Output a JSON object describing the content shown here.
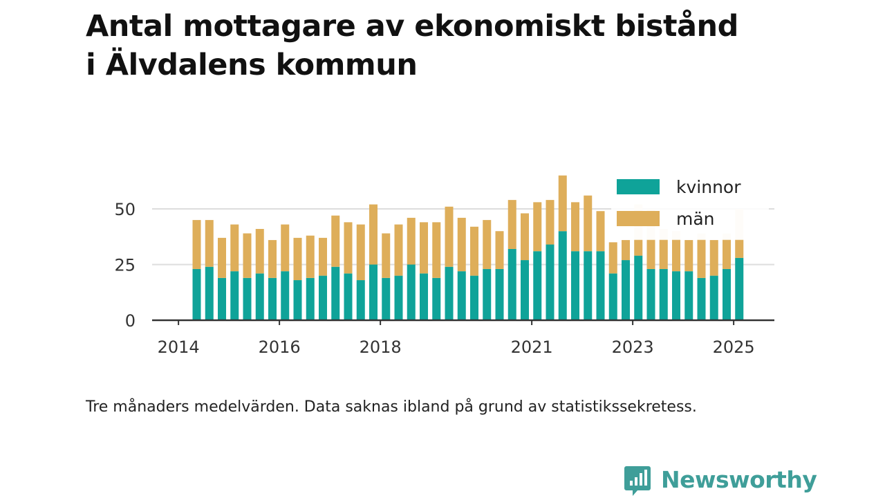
{
  "title_line1": "Antal mottagare av ekonomiskt bistånd",
  "title_line2": "i Älvdalens kommun",
  "note": "Tre månaders medelvärden. Data saknas ibland på grund av statistikssekretess.",
  "brand": {
    "name": "Newsworthy",
    "icon": "newsworthy-logo-icon",
    "color": "#3f9e99"
  },
  "chart_data": {
    "type": "bar",
    "stacked": true,
    "x_unit": "quarter",
    "categories": [
      "2014-Q2",
      "2014-Q3",
      "2014-Q4",
      "2015-Q1",
      "2015-Q2",
      "2015-Q3",
      "2015-Q4",
      "2016-Q1",
      "2016-Q2",
      "2016-Q3",
      "2016-Q4",
      "2017-Q1",
      "2017-Q2",
      "2017-Q3",
      "2017-Q4",
      "2018-Q1",
      "2018-Q2",
      "2018-Q3",
      "2018-Q4",
      "2019-Q1",
      "2019-Q2",
      "2019-Q3",
      "2019-Q4",
      "2020-Q1",
      "2020-Q2",
      "2020-Q3",
      "2020-Q4",
      "2021-Q1",
      "2021-Q2",
      "2021-Q3",
      "2021-Q4",
      "2022-Q1",
      "2022-Q2",
      "2022-Q3",
      "2022-Q4",
      "2023-Q1",
      "2023-Q2",
      "2023-Q3",
      "2023-Q4",
      "2024-Q1",
      "2024-Q2",
      "2024-Q3",
      "2024-Q4",
      "2025-Q1"
    ],
    "series": [
      {
        "name": "kvinnor",
        "color": "#0fa399",
        "values": [
          23,
          24,
          19,
          22,
          19,
          21,
          19,
          22,
          18,
          19,
          20,
          24,
          21,
          18,
          25,
          19,
          20,
          25,
          21,
          19,
          24,
          22,
          20,
          23,
          23,
          32,
          27,
          31,
          34,
          40,
          31,
          31,
          31,
          21,
          27,
          29,
          23,
          23,
          22,
          22,
          19,
          20,
          23,
          28
        ]
      },
      {
        "name": "män",
        "color": "#deae5a",
        "values": [
          22,
          21,
          18,
          21,
          20,
          20,
          17,
          21,
          19,
          19,
          17,
          23,
          23,
          25,
          27,
          20,
          23,
          21,
          23,
          25,
          27,
          24,
          22,
          22,
          17,
          22,
          21,
          22,
          20,
          25,
          22,
          25,
          18,
          14,
          9,
          7,
          13,
          13,
          14,
          14,
          17,
          16,
          13,
          8
        ]
      }
    ],
    "faded_tops": [
      null,
      null,
      null,
      null,
      null,
      null,
      null,
      null,
      null,
      null,
      null,
      null,
      null,
      null,
      null,
      null,
      null,
      null,
      null,
      null,
      null,
      null,
      null,
      null,
      null,
      null,
      null,
      null,
      null,
      null,
      null,
      null,
      null,
      null,
      null,
      52,
      50,
      41,
      40,
      null,
      39,
      null,
      39,
      50
    ],
    "year_ticks": [
      {
        "label": "2014",
        "at": "2014-Q1"
      },
      {
        "label": "2016",
        "at": "2016-Q1"
      },
      {
        "label": "2018",
        "at": "2018-Q1"
      },
      {
        "label": "2021",
        "at": "2021-Q1"
      },
      {
        "label": "2023",
        "at": "2023-Q1"
      },
      {
        "label": "2025",
        "at": "2025-Q1"
      }
    ],
    "y_ticks": [
      0,
      25,
      50
    ],
    "ylim": [
      0,
      65
    ],
    "grid": true,
    "legend_position": "top-right"
  }
}
